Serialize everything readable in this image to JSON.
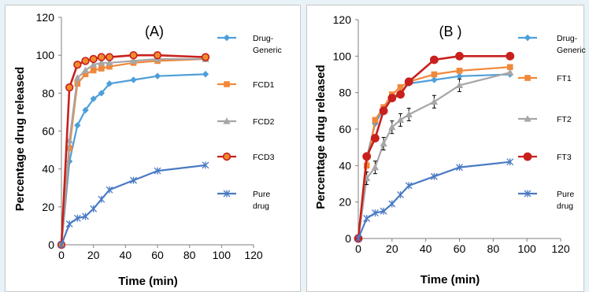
{
  "chart_data": [
    {
      "type": "line",
      "title": "(A)",
      "xlabel": "Time (min)",
      "ylabel": "Percentage drug released",
      "xlim": [
        0,
        120
      ],
      "ylim": [
        0,
        120
      ],
      "xticks": [
        0,
        20,
        40,
        60,
        80,
        100,
        120
      ],
      "yticks": [
        0,
        20,
        40,
        60,
        80,
        100,
        120
      ],
      "grid": false,
      "legend_position": "right",
      "series": [
        {
          "name": "Drug-Generic",
          "color": "#4e9fd8",
          "marker": "diamond",
          "x": [
            0,
            5,
            10,
            15,
            20,
            25,
            30,
            45,
            60,
            90
          ],
          "y": [
            0,
            44,
            63,
            71,
            77,
            80,
            85,
            87,
            89,
            90
          ]
        },
        {
          "name": "FCD1",
          "color": "#f0883a",
          "marker": "square",
          "x": [
            0,
            5,
            10,
            15,
            20,
            25,
            30,
            45,
            60,
            90
          ],
          "y": [
            0,
            51,
            85,
            90,
            92,
            93,
            94,
            96,
            97,
            98
          ]
        },
        {
          "name": "FCD2",
          "color": "#a6a6a6",
          "marker": "triangle",
          "x": [
            0,
            5,
            10,
            15,
            20,
            25,
            30,
            45,
            60,
            90
          ],
          "y": [
            0,
            55,
            88,
            92,
            95,
            96,
            96,
            97,
            98,
            98
          ]
        },
        {
          "name": "FCD3",
          "color": "#c8201c",
          "marker": "circle-orange",
          "x": [
            0,
            5,
            10,
            15,
            20,
            25,
            30,
            45,
            60,
            90
          ],
          "y": [
            0,
            83,
            95,
            97,
            98,
            99,
            99,
            100,
            100,
            99
          ]
        },
        {
          "name": "Pure drug",
          "color": "#4a7ac4",
          "marker": "star",
          "x": [
            0,
            5,
            10,
            15,
            20,
            25,
            30,
            45,
            60,
            90
          ],
          "y": [
            0,
            11,
            14,
            15,
            19,
            24,
            29,
            34,
            39,
            42
          ]
        }
      ],
      "legend_labels": [
        [
          "Drug-",
          "Generic"
        ],
        [
          "FCD1"
        ],
        [
          "FCD2"
        ],
        [
          "FCD3"
        ],
        [
          "Pure",
          "drug"
        ]
      ]
    },
    {
      "type": "line",
      "title": "(B )",
      "xlabel": "Time (min)",
      "ylabel": "Percentage drug released",
      "xlim": [
        0,
        120
      ],
      "ylim": [
        0,
        120
      ],
      "xticks": [
        0,
        20,
        40,
        60,
        80,
        100,
        120
      ],
      "yticks": [
        0,
        20,
        40,
        60,
        80,
        100,
        120
      ],
      "grid": false,
      "legend_position": "right",
      "series": [
        {
          "name": "Drug-Generic",
          "color": "#4e9fd8",
          "marker": "diamond",
          "x": [
            0,
            5,
            10,
            15,
            20,
            25,
            30,
            45,
            60,
            90
          ],
          "y": [
            0,
            44,
            63,
            71,
            77,
            80,
            85,
            87,
            89,
            90
          ]
        },
        {
          "name": "FT1",
          "color": "#f0883a",
          "marker": "square",
          "x": [
            0,
            5,
            10,
            15,
            20,
            25,
            30,
            45,
            60,
            90
          ],
          "y": [
            0,
            40,
            65,
            72,
            79,
            83,
            86,
            90,
            92,
            94
          ]
        },
        {
          "name": "FT2",
          "color": "#a6a6a6",
          "marker": "triangle",
          "errorbars": true,
          "x": [
            0,
            5,
            10,
            15,
            20,
            25,
            30,
            45,
            60,
            90
          ],
          "y": [
            0,
            33,
            39,
            52,
            61,
            65,
            68,
            75,
            84,
            91
          ]
        },
        {
          "name": "FT3",
          "color": "#c8201c",
          "marker": "circle",
          "x": [
            0,
            5,
            10,
            15,
            20,
            25,
            30,
            45,
            60,
            90
          ],
          "y": [
            0,
            45,
            55,
            70,
            77,
            79,
            86,
            98,
            100,
            100
          ]
        },
        {
          "name": "Pure drug",
          "color": "#4a7ac4",
          "marker": "star",
          "x": [
            0,
            5,
            10,
            15,
            20,
            25,
            30,
            45,
            60,
            90
          ],
          "y": [
            0,
            11,
            14,
            15,
            19,
            24,
            29,
            34,
            39,
            42
          ]
        }
      ],
      "legend_labels": [
        [
          "Drug-",
          "Generic"
        ],
        [
          "FT1"
        ],
        [
          "FT2"
        ],
        [
          "FT3"
        ],
        [
          "Pure",
          "drug"
        ]
      ]
    }
  ]
}
